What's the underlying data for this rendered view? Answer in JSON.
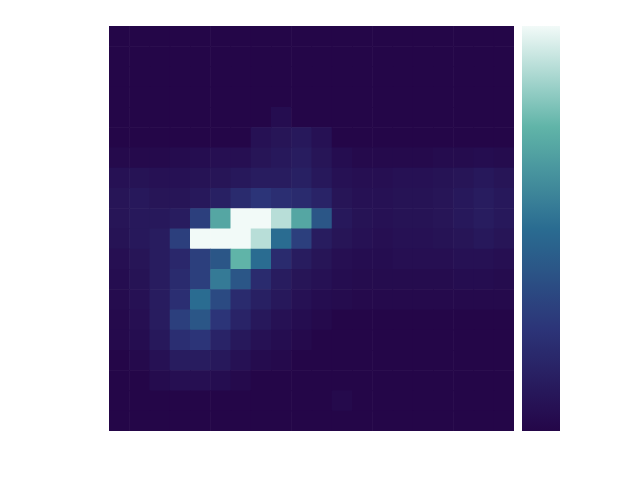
{
  "chart_data": {
    "type": "heatmap",
    "tick_labels": false,
    "colorbar_range": [
      0,
      1
    ],
    "cells": [
      [
        0,
        0,
        0,
        0,
        0,
        0,
        0,
        0,
        0,
        0,
        0,
        0,
        0,
        0,
        0,
        0,
        0,
        0,
        0,
        0
      ],
      [
        0,
        0,
        0,
        0,
        0,
        0,
        0,
        0,
        0,
        0,
        0,
        0,
        0,
        0,
        0,
        0,
        0,
        0,
        0,
        0
      ],
      [
        0,
        0,
        0,
        0,
        0,
        0,
        0,
        0,
        0,
        0,
        0,
        0,
        0,
        0,
        0,
        0,
        0,
        0,
        0,
        0
      ],
      [
        0,
        0,
        0,
        0,
        0,
        0,
        0,
        0,
        0,
        0,
        0,
        0,
        0,
        0,
        0,
        0,
        0,
        0,
        0,
        0
      ],
      [
        0,
        0,
        0,
        0,
        0,
        0,
        0,
        0,
        0.04,
        0,
        0,
        0,
        0,
        0,
        0,
        0,
        0,
        0,
        0,
        0
      ],
      [
        0,
        0,
        0,
        0,
        0,
        0,
        0,
        0.06,
        0.08,
        0.1,
        0.06,
        0,
        0,
        0,
        0,
        0,
        0,
        0,
        0,
        0
      ],
      [
        0.02,
        0.02,
        0.02,
        0.03,
        0.04,
        0.05,
        0.05,
        0.08,
        0.1,
        0.12,
        0.08,
        0.04,
        0.02,
        0.02,
        0.02,
        0.02,
        0.03,
        0.03,
        0.04,
        0.03
      ],
      [
        0.06,
        0.07,
        0.06,
        0.06,
        0.07,
        0.08,
        0.1,
        0.12,
        0.12,
        0.14,
        0.1,
        0.06,
        0.05,
        0.05,
        0.06,
        0.06,
        0.07,
        0.08,
        0.1,
        0.08
      ],
      [
        0.08,
        0.1,
        0.08,
        0.08,
        0.1,
        0.14,
        0.2,
        0.25,
        0.22,
        0.2,
        0.16,
        0.08,
        0.06,
        0.06,
        0.07,
        0.07,
        0.08,
        0.1,
        0.12,
        0.1
      ],
      [
        0.08,
        0.1,
        0.1,
        0.12,
        0.3,
        0.7,
        1,
        1,
        0.9,
        0.7,
        0.4,
        0.1,
        0.07,
        0.06,
        0.07,
        0.07,
        0.08,
        0.1,
        0.12,
        0.1
      ],
      [
        0.07,
        0.1,
        0.12,
        0.3,
        1,
        1,
        1,
        0.9,
        0.5,
        0.3,
        0.12,
        0.08,
        0.06,
        0.05,
        0.06,
        0.06,
        0.07,
        0.08,
        0.1,
        0.08
      ],
      [
        0.05,
        0.08,
        0.12,
        0.18,
        0.3,
        0.4,
        0.75,
        0.5,
        0.2,
        0.12,
        0.08,
        0.05,
        0.04,
        0.04,
        0.05,
        0.05,
        0.05,
        0.06,
        0.06,
        0.05
      ],
      [
        0.04,
        0.07,
        0.12,
        0.2,
        0.3,
        0.55,
        0.4,
        0.2,
        0.12,
        0.08,
        0.06,
        0.04,
        0.03,
        0.03,
        0.03,
        0.03,
        0.03,
        0.04,
        0.04,
        0.03
      ],
      [
        0.03,
        0.06,
        0.12,
        0.22,
        0.5,
        0.35,
        0.2,
        0.14,
        0.1,
        0.06,
        0.04,
        0.03,
        0.02,
        0.02,
        0.02,
        0.02,
        0.02,
        0.02,
        0.02,
        0.02
      ],
      [
        0.02,
        0.05,
        0.12,
        0.3,
        0.4,
        0.25,
        0.16,
        0.1,
        0.06,
        0.04,
        0.02,
        0,
        0,
        0,
        0,
        0,
        0,
        0,
        0,
        0
      ],
      [
        0.02,
        0.04,
        0.1,
        0.22,
        0.25,
        0.16,
        0.1,
        0.06,
        0.04,
        0.02,
        0,
        0,
        0,
        0,
        0,
        0,
        0,
        0,
        0,
        0
      ],
      [
        0,
        0.02,
        0.06,
        0.12,
        0.12,
        0.1,
        0.06,
        0.03,
        0.02,
        0,
        0,
        0,
        0,
        0,
        0,
        0,
        0,
        0,
        0,
        0
      ],
      [
        0,
        0,
        0.03,
        0.05,
        0.05,
        0.04,
        0.02,
        0,
        0,
        0,
        0,
        0,
        0,
        0,
        0,
        0,
        0,
        0,
        0,
        0
      ],
      [
        0,
        0,
        0,
        0,
        0,
        0,
        0,
        0,
        0,
        0,
        0,
        0.02,
        0,
        0,
        0,
        0,
        0,
        0,
        0,
        0
      ],
      [
        0,
        0,
        0,
        0,
        0,
        0,
        0,
        0,
        0,
        0,
        0,
        0,
        0,
        0,
        0,
        0,
        0,
        0,
        0,
        0
      ]
    ]
  }
}
